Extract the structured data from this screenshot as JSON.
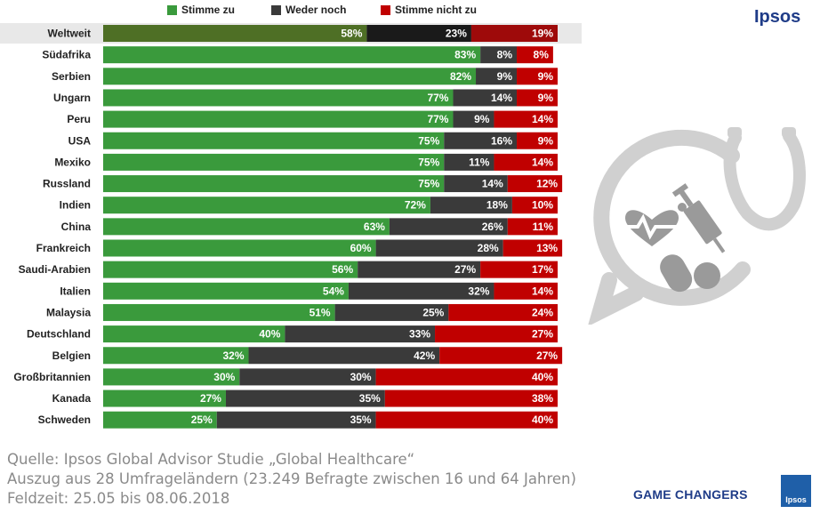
{
  "brand": {
    "name": "Ipsos"
  },
  "legend": [
    {
      "label": "Stimme zu",
      "color": "#3a9a3c"
    },
    {
      "label": "Weder noch",
      "color": "#3a3a3a"
    },
    {
      "label": "Stimme nicht zu",
      "color": "#c00000"
    }
  ],
  "chart_data": {
    "type": "bar",
    "orientation": "horizontal",
    "stacked": true,
    "categories": [
      "Weltweit",
      "Südafrika",
      "Serbien",
      "Ungarn",
      "Peru",
      "USA",
      "Mexiko",
      "Russland",
      "Indien",
      "China",
      "Frankreich",
      "Saudi-Arabien",
      "Italien",
      "Malaysia",
      "Deutschland",
      "Belgien",
      "Großbritannien",
      "Kanada",
      "Schweden"
    ],
    "series": [
      {
        "name": "Stimme zu",
        "color": "#3a9a3c",
        "values": [
          58,
          83,
          82,
          77,
          77,
          75,
          75,
          75,
          72,
          63,
          60,
          56,
          54,
          51,
          40,
          32,
          30,
          27,
          25
        ]
      },
      {
        "name": "Weder noch",
        "color": "#3a3a3a",
        "values": [
          23,
          8,
          9,
          14,
          9,
          16,
          11,
          14,
          18,
          26,
          28,
          27,
          32,
          25,
          33,
          42,
          30,
          35,
          35
        ]
      },
      {
        "name": "Stimme nicht zu",
        "color": "#c00000",
        "values": [
          19,
          8,
          9,
          9,
          14,
          9,
          14,
          12,
          10,
          11,
          13,
          17,
          14,
          24,
          27,
          27,
          40,
          38,
          40
        ]
      }
    ],
    "value_suffix": "%",
    "highlight_category": "Weltweit",
    "highlight_colors": [
      "#4e6f25",
      "#1a1a1a",
      "#9e0a0a"
    ],
    "xlim": [
      0,
      100
    ]
  },
  "source": {
    "line1": "Quelle: Ipsos Global Advisor Studie „Global Healthcare“",
    "line2": "Auszug aus 28 Umfrageländern (23.249 Befragte zwischen 16 und 64 Jahren)",
    "line3": "Feldzeit: 25.05 bis 08.06.2018"
  },
  "footer": {
    "slogan": "GAME CHANGERS",
    "badge_text": "Ipsos"
  }
}
